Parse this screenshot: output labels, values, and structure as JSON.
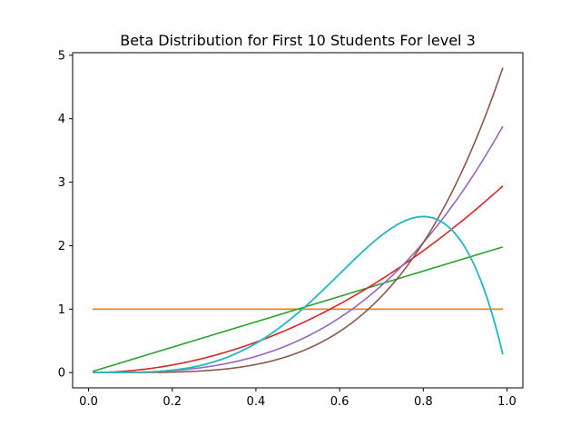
{
  "chart_data": {
    "type": "line",
    "title": "Beta Distribution for First 10 Students For level 3",
    "xlabel": "",
    "ylabel": "",
    "xlim": [
      -0.038,
      1.038
    ],
    "ylim": [
      -0.24,
      5.04
    ],
    "xticks": [
      0.0,
      0.2,
      0.4,
      0.6,
      0.8,
      1.0
    ],
    "xtick_labels": [
      "0.0",
      "0.2",
      "0.4",
      "0.6",
      "0.8",
      "1.0"
    ],
    "yticks": [
      0,
      1,
      2,
      3,
      4,
      5
    ],
    "ytick_labels": [
      "0",
      "1",
      "2",
      "3",
      "4",
      "5"
    ],
    "grid": false,
    "x_range": [
      0.01,
      0.99
    ],
    "series": [
      {
        "color": "#1f77b4",
        "alpha": 1,
        "beta": 1
      },
      {
        "color": "#ff7f0e",
        "alpha": 1,
        "beta": 1
      },
      {
        "color": "#2ca02c",
        "alpha": 2,
        "beta": 1
      },
      {
        "color": "#d62728",
        "alpha": 3,
        "beta": 1
      },
      {
        "color": "#9467bd",
        "alpha": 4,
        "beta": 1
      },
      {
        "color": "#8c564b",
        "alpha": 5,
        "beta": 1
      },
      {
        "color": "#e377c2",
        "alpha": 5,
        "beta": 2
      },
      {
        "color": "#7f7f7f",
        "alpha": 5,
        "beta": 2
      },
      {
        "color": "#bcbd22",
        "alpha": 5,
        "beta": 2
      },
      {
        "color": "#17becf",
        "alpha": 5,
        "beta": 2
      }
    ]
  }
}
